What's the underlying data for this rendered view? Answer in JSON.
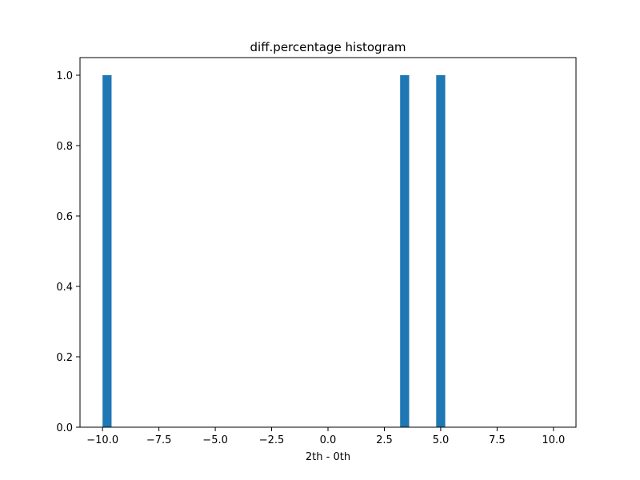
{
  "chart_data": {
    "type": "bar",
    "title": "diff.percentage histogram",
    "xlabel": "2th - 0th",
    "ylabel": "",
    "xlim": [
      -11.0,
      11.0
    ],
    "ylim": [
      0,
      1.05
    ],
    "grid": false,
    "bar_color": "#1f77b4",
    "bins": [
      {
        "x_start": -10.0,
        "x_end": -9.6,
        "count": 1
      },
      {
        "x_start": 3.2,
        "x_end": 3.6,
        "count": 1
      },
      {
        "x_start": 4.8,
        "x_end": 5.2,
        "count": 1
      }
    ],
    "x_ticks": [
      {
        "value": -10.0,
        "label": "−10.0"
      },
      {
        "value": -7.5,
        "label": "−7.5"
      },
      {
        "value": -5.0,
        "label": "−5.0"
      },
      {
        "value": -2.5,
        "label": "−2.5"
      },
      {
        "value": 0.0,
        "label": "0.0"
      },
      {
        "value": 2.5,
        "label": "2.5"
      },
      {
        "value": 5.0,
        "label": "5.0"
      },
      {
        "value": 7.5,
        "label": "7.5"
      },
      {
        "value": 10.0,
        "label": "10.0"
      }
    ],
    "y_ticks": [
      {
        "value": 0.0,
        "label": "0.0"
      },
      {
        "value": 0.2,
        "label": "0.2"
      },
      {
        "value": 0.4,
        "label": "0.4"
      },
      {
        "value": 0.6,
        "label": "0.6"
      },
      {
        "value": 0.8,
        "label": "0.8"
      },
      {
        "value": 1.0,
        "label": "1.0"
      }
    ]
  }
}
